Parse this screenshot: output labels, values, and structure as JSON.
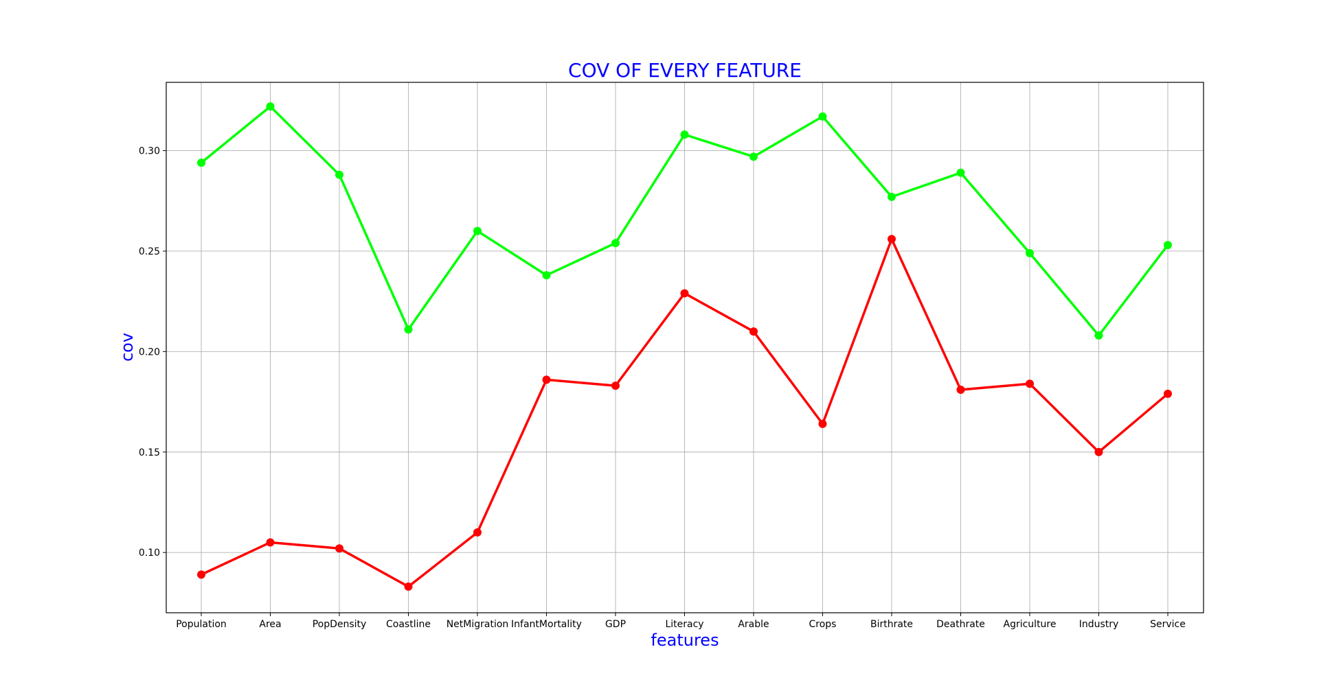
{
  "chart_data": {
    "type": "line",
    "title": "COV OF EVERY FEATURE",
    "xlabel": "features",
    "ylabel": "cov",
    "categories": [
      "Population",
      "Area",
      "PopDensity",
      "Coastline",
      "NetMigration",
      "InfantMortality",
      "GDP",
      "Literacy",
      "Arable",
      "Crops",
      "Birthrate",
      "Deathrate",
      "Agriculture",
      "Industry",
      "Service"
    ],
    "yticks": [
      "0.10",
      "0.15",
      "0.20",
      "0.25",
      "0.30"
    ],
    "ylim": [
      0.07,
      0.334
    ],
    "grid": true,
    "series": [
      {
        "name": "series-1",
        "color": "#00ff00",
        "values": [
          0.294,
          0.322,
          0.288,
          0.211,
          0.26,
          0.238,
          0.254,
          0.308,
          0.297,
          0.317,
          0.277,
          0.289,
          0.249,
          0.208,
          0.253
        ]
      },
      {
        "name": "series-2",
        "color": "#ff0000",
        "values": [
          0.089,
          0.105,
          0.102,
          0.083,
          0.11,
          0.186,
          0.183,
          0.229,
          0.21,
          0.164,
          0.256,
          0.181,
          0.184,
          0.15,
          0.179
        ]
      }
    ],
    "title_color": "#0000ff",
    "label_color": "#0000ff"
  }
}
